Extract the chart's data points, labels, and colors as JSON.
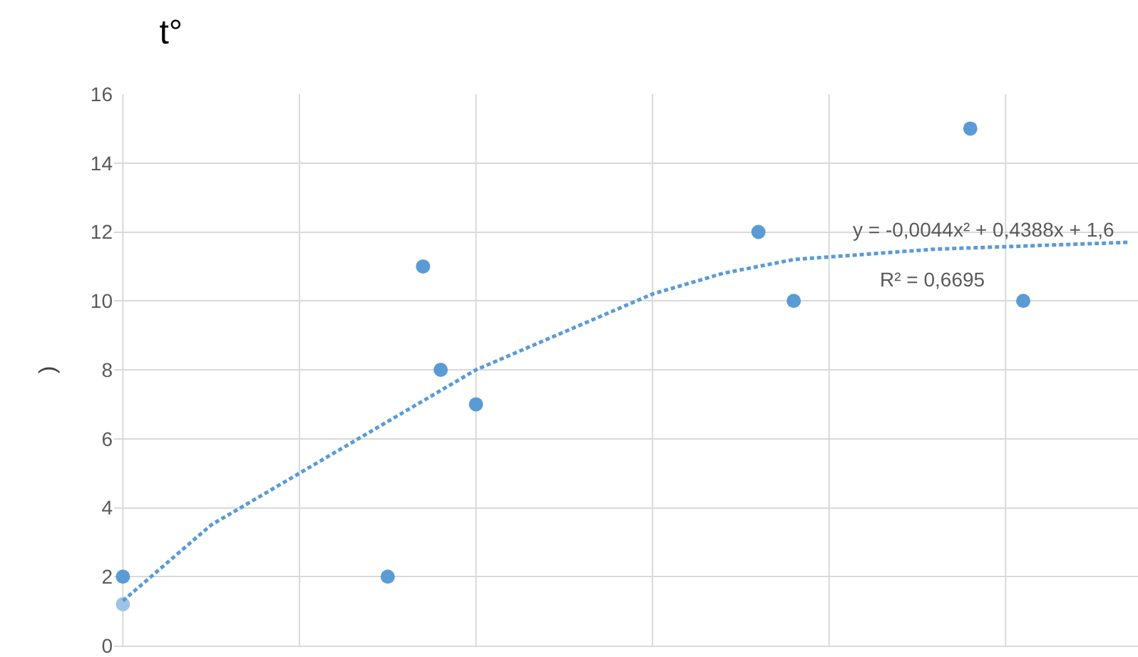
{
  "chart_data": {
    "type": "scatter",
    "title": "t°",
    "ylabel": ")",
    "categories": [
      null,
      null,
      null,
      null,
      null,
      null,
      null,
      null,
      null,
      null,
      null,
      null,
      null,
      null,
      null,
      null,
      null,
      null,
      null,
      null,
      null,
      null,
      null,
      null,
      null,
      null,
      null,
      null,
      null,
      null,
      null,
      null,
      null,
      null,
      null,
      null,
      null,
      null,
      null,
      null,
      null,
      null,
      null,
      null,
      null,
      null,
      null,
      null,
      null,
      null,
      null,
      null,
      null,
      null,
      null,
      null,
      null,
      null
    ],
    "series": [
      {
        "color": "#5b9bd5",
        "values": [
          2,
          null,
          null,
          null,
          null,
          null,
          null,
          null,
          null,
          null,
          null,
          null,
          null,
          null,
          null,
          2,
          null,
          11,
          8,
          null,
          7,
          null,
          null,
          null,
          null,
          null,
          null,
          null,
          null,
          null,
          null,
          null,
          null,
          null,
          null,
          null,
          12,
          null,
          10,
          null,
          null,
          null,
          null,
          null,
          null,
          null,
          null,
          null,
          15,
          null,
          null,
          10,
          null,
          null,
          null,
          null,
          null,
          null
        ]
      },
      {
        "color": "#9dc3e6",
        "values": [
          1.2,
          null,
          null,
          null,
          null,
          null,
          null,
          null,
          null,
          null,
          null,
          null,
          null,
          null,
          null,
          null,
          null,
          null,
          null,
          null,
          null,
          null,
          null,
          null,
          null,
          null,
          null,
          null,
          null,
          null,
          null,
          null,
          null,
          null,
          null,
          null,
          null,
          null,
          null,
          null,
          null,
          null,
          null,
          null,
          null,
          null,
          null,
          null,
          null,
          null,
          null,
          null,
          null,
          null,
          null,
          null,
          null,
          null
        ]
      },
      {
        "type": "line",
        "color": "#5b9bd5",
        "line_style": "dotted",
        "marker": "none",
        "values": [
          1.3,
          null,
          null,
          null,
          null,
          3.5,
          null,
          null,
          null,
          null,
          5.0,
          null,
          null,
          null,
          null,
          6.5,
          null,
          null,
          null,
          null,
          8.0,
          null,
          null,
          null,
          null,
          9.1,
          null,
          null,
          null,
          null,
          10.2,
          null,
          null,
          null,
          10.8,
          null,
          null,
          null,
          11.2,
          null,
          null,
          null,
          null,
          null,
          null,
          null,
          11.5,
          null,
          null,
          null,
          null,
          null,
          null,
          null,
          null,
          null,
          null,
          11.7
        ]
      }
    ],
    "annotations": [
      "y = -0,0044x² + 0,4388x + 1,6",
      "R² = 0,6695"
    ],
    "ylim": [
      0,
      16
    ],
    "yticks": [
      0,
      2,
      4,
      6,
      8,
      10,
      12,
      14,
      16
    ],
    "tick_labels": "y",
    "grid": true,
    "marker": "circle"
  }
}
